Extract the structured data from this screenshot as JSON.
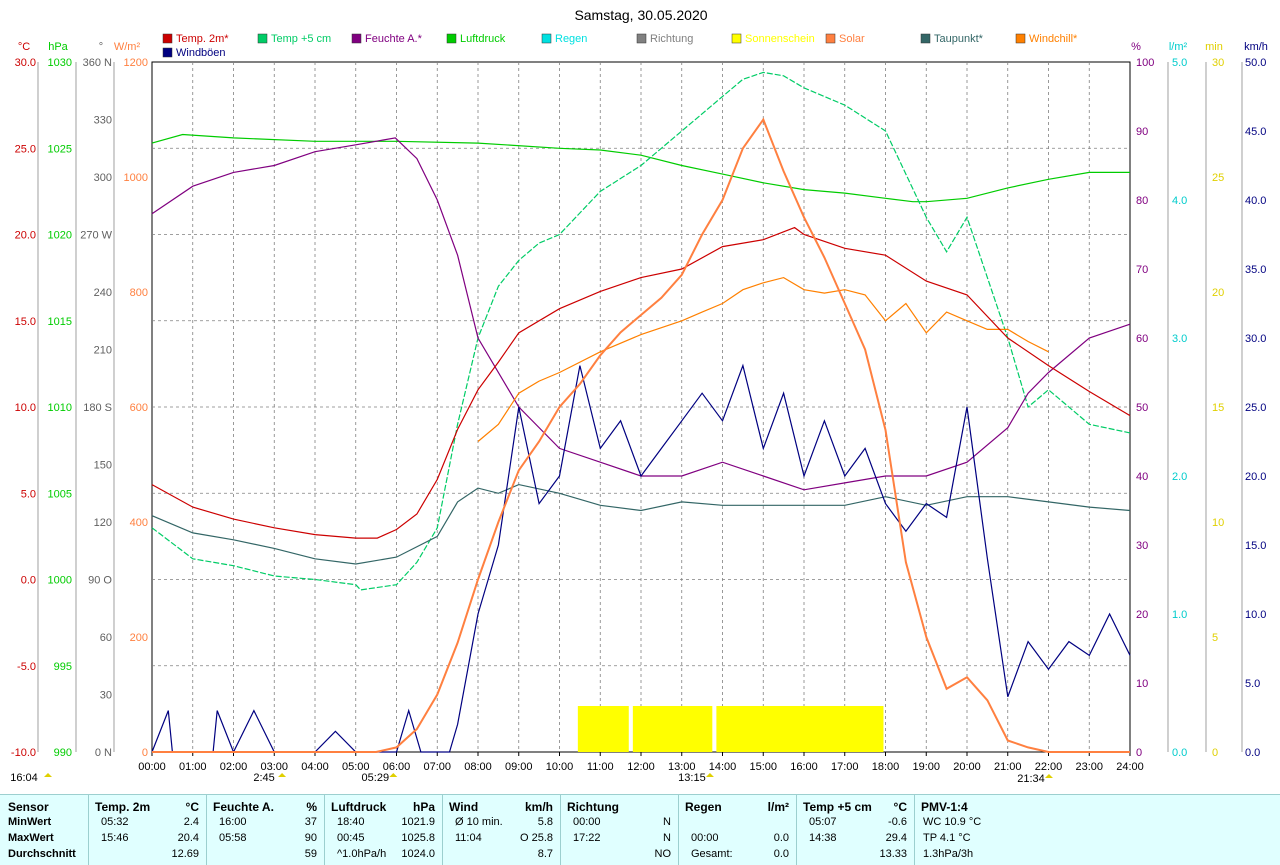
{
  "chart_data": {
    "type": "line",
    "title": "Samstag, 30.05.2020",
    "x_range": [
      "00:00",
      "24:00"
    ],
    "x_ticks": [
      "00:00",
      "01:00",
      "02:00",
      "03:00",
      "04:00",
      "05:00",
      "06:00",
      "07:00",
      "08:00",
      "09:00",
      "10:00",
      "11:00",
      "12:00",
      "13:00",
      "14:00",
      "15:00",
      "16:00",
      "17:00",
      "18:00",
      "19:00",
      "20:00",
      "21:00",
      "22:00",
      "23:00",
      "24:00"
    ],
    "legend": [
      {
        "name": "Temp. 2m*",
        "color": "#cc0000"
      },
      {
        "name": "Temp +5 cm",
        "color": "#00cc66"
      },
      {
        "name": "Feuchte A.*",
        "color": "#800080"
      },
      {
        "name": "Luftdruck",
        "color": "#00cc00"
      },
      {
        "name": "Regen",
        "color": "#00e0e0"
      },
      {
        "name": "Richtung",
        "color": "#808080"
      },
      {
        "name": "Sonnenschein",
        "color": "#ffff00"
      },
      {
        "name": "Solar",
        "color": "#ff8040"
      },
      {
        "name": "Taupunkt*",
        "color": "#336666"
      },
      {
        "name": "Windchill*",
        "color": "#ff8000"
      },
      {
        "name": "Windböen",
        "color": "#000080"
      }
    ],
    "axes": {
      "temp": {
        "unit": "°C",
        "color": "#cc0000",
        "ticks": [
          "30.0",
          "25.0",
          "20.0",
          "15.0",
          "10.0",
          "5.0",
          "0.0",
          "-5.0",
          "-10.0"
        ],
        "range": [
          -10,
          30
        ]
      },
      "pressure": {
        "unit": "hPa",
        "color": "#00cc00",
        "ticks": [
          "1030",
          "1025",
          "1020",
          "1015",
          "1010",
          "1005",
          "1000",
          "995",
          "990"
        ],
        "range": [
          990,
          1030
        ]
      },
      "direction": {
        "unit": "°",
        "color": "#606060",
        "ticks": [
          "360 N",
          "330",
          "300",
          "270 W",
          "240",
          "210",
          "180 S",
          "150",
          "120",
          "90 O",
          "60",
          "30",
          "0 N"
        ],
        "range": [
          0,
          360
        ]
      },
      "solar": {
        "unit": "W/m²",
        "color": "#ff8040",
        "ticks": [
          "1200",
          "1000",
          "800",
          "600",
          "400",
          "200",
          "0"
        ],
        "range": [
          0,
          1200
        ]
      },
      "humidity": {
        "unit": "%",
        "color": "#800080",
        "ticks": [
          "100",
          "90",
          "80",
          "70",
          "60",
          "50",
          "40",
          "30",
          "20",
          "10",
          "0"
        ],
        "range": [
          0,
          100
        ]
      },
      "rain": {
        "unit": "l/m²",
        "color": "#00cccc",
        "ticks": [
          "5.0",
          "4.0",
          "3.0",
          "2.0",
          "1.0",
          "0.0"
        ],
        "range": [
          0,
          5
        ]
      },
      "sunshine": {
        "unit": "min",
        "color": "#e0d000",
        "ticks": [
          "30",
          "25",
          "20",
          "15",
          "10",
          "5",
          "0"
        ],
        "range": [
          0,
          30
        ]
      },
      "wind": {
        "unit": "km/h",
        "color": "#000080",
        "ticks": [
          "50.0",
          "45.0",
          "40.0",
          "35.0",
          "30.0",
          "25.0",
          "20.0",
          "15.0",
          "10.0",
          "5.0",
          "0.0"
        ],
        "range": [
          0,
          50
        ]
      }
    },
    "series": [
      {
        "name": "Temp. 2m*",
        "axis": "temp",
        "x": [
          0,
          1,
          2,
          3,
          4,
          5,
          5.53,
          6,
          6.5,
          7,
          7.5,
          8,
          8.5,
          9,
          10,
          11,
          12,
          13,
          14,
          15,
          15.77,
          16,
          17,
          18,
          19,
          20,
          21,
          22,
          23,
          24
        ],
        "y": [
          5.5,
          4.2,
          3.5,
          3.0,
          2.6,
          2.4,
          2.4,
          2.9,
          3.8,
          5.8,
          8.7,
          11.0,
          12.6,
          14.3,
          15.7,
          16.7,
          17.5,
          18.0,
          19.3,
          19.7,
          20.4,
          20.0,
          19.2,
          18.8,
          17.3,
          16.5,
          14.0,
          12.4,
          10.9,
          9.5
        ]
      },
      {
        "name": "Temp +5 cm",
        "axis": "temp",
        "x": [
          0,
          1,
          2,
          3,
          4,
          5,
          5.12,
          6,
          6.5,
          7,
          7.5,
          8,
          8.5,
          9,
          9.5,
          10,
          11,
          12,
          13,
          13.5,
          14,
          14.5,
          15,
          15.5,
          16,
          17,
          18,
          19,
          19.5,
          20,
          21,
          21.5,
          22,
          23,
          24
        ],
        "y": [
          3.0,
          1.2,
          0.8,
          0.2,
          0.0,
          -0.3,
          -0.6,
          -0.3,
          1.0,
          3.0,
          9.0,
          14.0,
          17.0,
          18.5,
          19.5,
          20.0,
          22.5,
          24.0,
          26.0,
          27.0,
          28.0,
          29.0,
          29.4,
          29.2,
          28.5,
          27.5,
          26.0,
          21.0,
          19.0,
          21.0,
          14.0,
          10.0,
          11.0,
          9.0,
          8.5
        ]
      },
      {
        "name": "Feuchte A.*",
        "axis": "humidity",
        "x": [
          0,
          1,
          2,
          3,
          4,
          5,
          5.97,
          6.5,
          7,
          7.5,
          8,
          9,
          10,
          11,
          12,
          13,
          14,
          15,
          16,
          17,
          18,
          19,
          20,
          21,
          21.5,
          22,
          23,
          24
        ],
        "y": [
          78,
          82,
          84,
          85,
          87,
          88,
          89,
          86,
          80,
          72,
          60,
          50,
          44,
          42,
          40,
          40,
          42,
          40,
          38,
          39,
          40,
          40,
          42,
          47,
          52,
          55,
          60,
          62
        ]
      },
      {
        "name": "Luftdruck",
        "axis": "pressure",
        "x": [
          0,
          0.75,
          2,
          4,
          6,
          8,
          10,
          11,
          12,
          13,
          14,
          15,
          16,
          17,
          18,
          18.67,
          19,
          20,
          21,
          22,
          23,
          24
        ],
        "y": [
          1025.3,
          1025.8,
          1025.6,
          1025.4,
          1025.4,
          1025.3,
          1025.0,
          1024.9,
          1024.6,
          1024.0,
          1023.5,
          1023.0,
          1022.6,
          1022.4,
          1022.1,
          1021.9,
          1021.9,
          1022.1,
          1022.7,
          1023.2,
          1023.6,
          1023.6
        ]
      },
      {
        "name": "Solar",
        "axis": "solar",
        "x": [
          0,
          5.5,
          6,
          6.5,
          7,
          7.5,
          8,
          8.5,
          9,
          9.5,
          10,
          10.5,
          11,
          11.5,
          12,
          12.5,
          13,
          13.5,
          14,
          14.5,
          15,
          15.5,
          16,
          16.5,
          17,
          17.5,
          18,
          18.5,
          19,
          19.5,
          20,
          20.5,
          21,
          21.5,
          22,
          23,
          24
        ],
        "y": [
          0,
          0,
          8,
          40,
          100,
          190,
          300,
          400,
          490,
          540,
          600,
          640,
          690,
          730,
          760,
          790,
          830,
          900,
          960,
          1050,
          1100,
          1010,
          930,
          860,
          780,
          700,
          560,
          330,
          200,
          110,
          130,
          90,
          20,
          8,
          0,
          0,
          0
        ]
      },
      {
        "name": "Taupunkt*",
        "axis": "temp",
        "x": [
          0,
          1,
          2,
          3,
          4,
          5,
          6,
          7,
          7.5,
          8,
          8.5,
          9,
          10,
          11,
          12,
          13,
          14,
          15,
          16,
          17,
          18,
          19,
          20,
          21,
          22,
          23,
          24
        ],
        "y": [
          3.7,
          2.7,
          2.3,
          1.8,
          1.2,
          0.9,
          1.3,
          2.5,
          4.5,
          5.3,
          5.0,
          5.5,
          5.0,
          4.3,
          4.0,
          4.5,
          4.3,
          4.3,
          4.3,
          4.3,
          4.8,
          4.3,
          4.8,
          4.8,
          4.5,
          4.2,
          4.0
        ]
      },
      {
        "name": "Windchill*",
        "axis": "temp",
        "x": [
          8,
          8.5,
          9,
          9.5,
          10,
          11,
          12,
          13,
          13.5,
          14,
          14.5,
          15,
          15.5,
          16,
          16.5,
          17,
          17.5,
          18,
          18.5,
          19,
          19.5,
          20,
          20.5,
          21,
          21.5,
          22
        ],
        "y": [
          8.0,
          9.0,
          10.8,
          11.5,
          12.0,
          13.2,
          14.2,
          15.0,
          15.5,
          16.0,
          16.8,
          17.2,
          17.5,
          16.8,
          16.6,
          16.8,
          16.5,
          15.0,
          16.0,
          14.3,
          15.5,
          15.0,
          14.5,
          14.5,
          13.8,
          13.2
        ]
      },
      {
        "name": "Windböen",
        "axis": "wind",
        "x": [
          0,
          0.4,
          0.5,
          1,
          1.5,
          1.6,
          2,
          2.5,
          3,
          4,
          4.5,
          5,
          5.5,
          6,
          6.3,
          6.6,
          7,
          7.3,
          7.5,
          8,
          8.5,
          9,
          9.5,
          10,
          10.5,
          11,
          11.5,
          12,
          12.5,
          13,
          13.5,
          14,
          14.5,
          15,
          15.5,
          16,
          16.5,
          17,
          17.5,
          18,
          18.5,
          19,
          19.5,
          20,
          20.5,
          21,
          21.5,
          22,
          22.5,
          23,
          23.5,
          24
        ],
        "y": [
          0,
          3,
          0,
          0,
          0,
          3,
          0,
          3,
          0,
          0,
          1.5,
          0,
          0,
          0,
          3,
          0,
          0,
          0,
          2,
          10,
          15,
          25,
          18,
          20,
          28,
          22,
          24,
          20,
          22,
          24,
          26,
          24,
          28,
          22,
          26,
          20,
          24,
          20,
          22,
          18,
          16,
          18,
          17,
          25,
          14,
          4,
          8,
          6,
          8,
          7,
          10,
          7
        ]
      }
    ],
    "sunshine_blocks_h": [
      [
        10.45,
        11.7
      ],
      [
        11.8,
        13.75
      ],
      [
        13.85,
        17.95
      ]
    ],
    "markers": [
      {
        "label": "16:04",
        "pos": 0.0
      },
      {
        "label": "2:45",
        "pos": 2.75
      },
      {
        "label": "05:29",
        "pos": 5.48
      },
      {
        "label": "13:15",
        "pos": 13.25
      },
      {
        "label": "21:34",
        "pos": 21.57
      }
    ]
  },
  "stats": {
    "sensor": {
      "header": "Sensor",
      "rows": [
        "MinWert",
        "MaxWert",
        "Durchschnitt"
      ]
    },
    "temp": {
      "header": "Temp. 2m",
      "unit": "°C",
      "rows": [
        [
          "05:32",
          "2.4"
        ],
        [
          "15:46",
          "20.4"
        ],
        [
          "",
          "12.69"
        ]
      ]
    },
    "humidity": {
      "header": "Feuchte A.",
      "unit": "%",
      "rows": [
        [
          "16:00",
          "37"
        ],
        [
          "05:58",
          "90"
        ],
        [
          "",
          "59"
        ]
      ]
    },
    "pressure": {
      "header": "Luftdruck",
      "unit": "hPa",
      "rows": [
        [
          "18:40",
          "1021.9"
        ],
        [
          "00:45",
          "1025.8"
        ],
        [
          "^1.0hPa/h",
          "1024.0"
        ]
      ]
    },
    "wind": {
      "header": "Wind",
      "unit": "km/h",
      "rows": [
        [
          "Ø 10 min.",
          "5.8"
        ],
        [
          "11:04",
          "O 25.8"
        ],
        [
          "",
          "8.7"
        ]
      ]
    },
    "direction": {
      "header": "Richtung",
      "unit": "",
      "rows": [
        [
          "00:00",
          "N"
        ],
        [
          "17:22",
          "N"
        ],
        [
          "",
          "NO"
        ]
      ]
    },
    "rain": {
      "header": "Regen",
      "unit": "l/m²",
      "rows": [
        [
          "",
          ""
        ],
        [
          "00:00",
          "0.0"
        ],
        [
          "Gesamt:",
          "0.0"
        ]
      ]
    },
    "temp5": {
      "header": "Temp +5 cm",
      "unit": "°C",
      "rows": [
        [
          "05:07",
          "-0.6"
        ],
        [
          "14:38",
          "29.4"
        ],
        [
          "",
          "13.33"
        ]
      ]
    },
    "pmv": {
      "header": "PMV-1:4",
      "unit": "",
      "rows": [
        "WC 10.9 °C",
        "TP 4.1 °C",
        "1.3hPa/3h"
      ]
    }
  }
}
